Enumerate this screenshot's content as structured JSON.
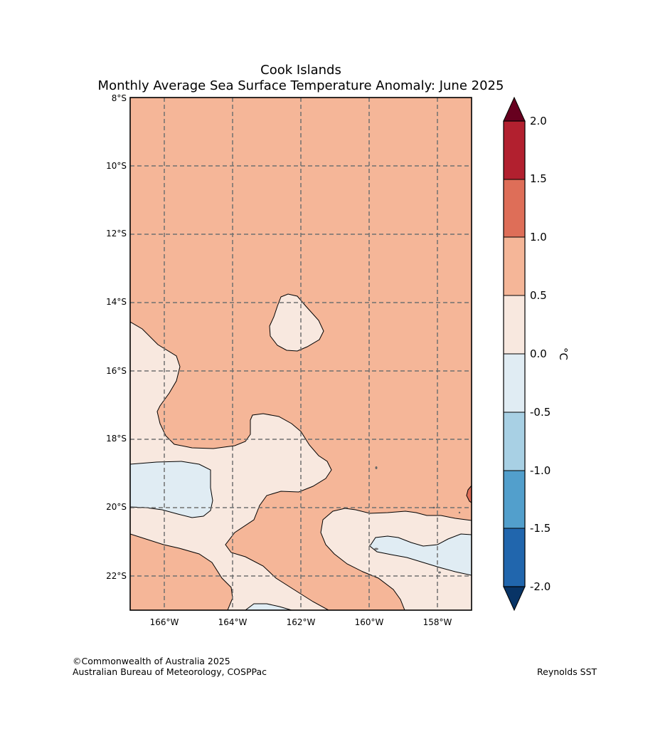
{
  "title": {
    "line1": "Cook Islands",
    "line2": "Monthly Average Sea Surface Temperature Anomaly: June 2025"
  },
  "map": {
    "lon_range": [
      -167,
      -157
    ],
    "lat_range": [
      -23,
      -8
    ],
    "lat_ticks": [
      "8°S",
      "10°S",
      "12°S",
      "14°S",
      "16°S",
      "18°S",
      "20°S",
      "22°S"
    ],
    "lon_ticks": [
      "166°W",
      "164°W",
      "162°W",
      "160°W",
      "158°W"
    ],
    "gridlines": "dashed"
  },
  "colorbar": {
    "unit": "°C",
    "labels": [
      "2.0",
      "1.5",
      "1.0",
      "0.5",
      "0.0",
      "-0.5",
      "-1.0",
      "-1.5",
      "-2.0"
    ],
    "colors": {
      "above_max": "#67001f",
      "b_1.5_2.0": "#b2202f",
      "b_1.0_1.5": "#de6e58",
      "b_0.5_1.0": "#f5b698",
      "b_0.0_0.5": "#f8e8df",
      "b_-0.5_0.0": "#e0ecf3",
      "b_-1.0_-0.5": "#a8d0e4",
      "b_-1.5_-1.0": "#529fcc",
      "b_-2.0_-1.5": "#2166ad",
      "below_min": "#083466"
    }
  },
  "footer": {
    "copyright": "©Commonwealth of Australia 2025",
    "agency": "Australian Bureau of Meteorology, COSPPac",
    "source": "Reynolds SST"
  }
}
